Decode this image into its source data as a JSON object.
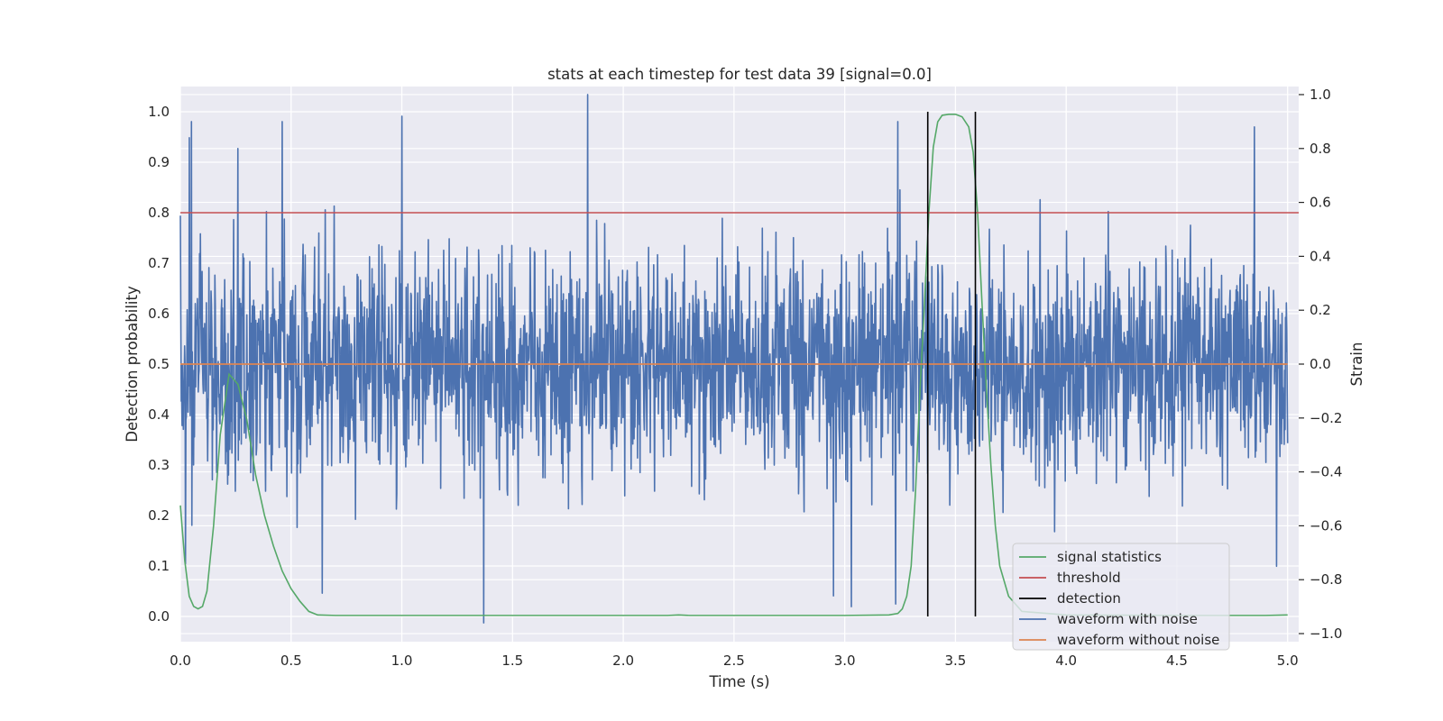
{
  "chart_data": {
    "type": "line",
    "title": "stats at each timestep for test data 39 [signal=0.0]",
    "xlabel": "Time (s)",
    "ylabel_left": "Detection probability",
    "ylabel_right": "Strain",
    "xlim": [
      0.0,
      5.05
    ],
    "ylim_left": [
      -0.05,
      1.05
    ],
    "ylim_right": [
      -1.03,
      1.03
    ],
    "x_ticks": [
      0.0,
      0.5,
      1.0,
      1.5,
      2.0,
      2.5,
      3.0,
      3.5,
      4.0,
      4.5,
      5.0
    ],
    "x_tick_labels": [
      "0.0",
      "0.5",
      "1.0",
      "1.5",
      "2.0",
      "2.5",
      "3.0",
      "3.5",
      "4.0",
      "4.5",
      "5.0"
    ],
    "y_left_ticks": [
      0.0,
      0.1,
      0.2,
      0.3,
      0.4,
      0.5,
      0.6,
      0.7,
      0.8,
      0.9,
      1.0
    ],
    "y_left_tick_labels": [
      "0.0",
      "0.1",
      "0.2",
      "0.3",
      "0.4",
      "0.5",
      "0.6",
      "0.7",
      "0.8",
      "0.9",
      "1.0"
    ],
    "y_right_ticks": [
      -1.0,
      -0.8,
      -0.6,
      -0.4,
      -0.2,
      0.0,
      0.2,
      0.4,
      0.6,
      0.8,
      1.0
    ],
    "y_right_tick_labels": [
      "−1.0",
      "−0.8",
      "−0.6",
      "−0.4",
      "−0.2",
      "0.0",
      "0.2",
      "0.4",
      "0.6",
      "0.8",
      "1.0"
    ],
    "grid": true,
    "legend_position": "lower-right",
    "series": [
      {
        "name": "signal statistics",
        "axis": "left",
        "color": "#55a868",
        "x": [
          0.0,
          0.02,
          0.04,
          0.06,
          0.08,
          0.1,
          0.12,
          0.15,
          0.18,
          0.22,
          0.26,
          0.3,
          0.34,
          0.38,
          0.42,
          0.46,
          0.5,
          0.54,
          0.58,
          0.62,
          0.7,
          1.0,
          1.5,
          2.0,
          2.2,
          2.25,
          2.3,
          2.5,
          3.0,
          3.2,
          3.24,
          3.26,
          3.28,
          3.3,
          3.32,
          3.34,
          3.36,
          3.38,
          3.4,
          3.42,
          3.44,
          3.47,
          3.5,
          3.53,
          3.56,
          3.58,
          3.6,
          3.62,
          3.64,
          3.66,
          3.68,
          3.7,
          3.74,
          3.8,
          4.0,
          4.5,
          4.9,
          5.0
        ],
        "y": [
          0.22,
          0.11,
          0.04,
          0.02,
          0.015,
          0.02,
          0.05,
          0.18,
          0.36,
          0.48,
          0.46,
          0.39,
          0.28,
          0.2,
          0.14,
          0.09,
          0.055,
          0.03,
          0.01,
          0.003,
          0.002,
          0.002,
          0.002,
          0.002,
          0.002,
          0.003,
          0.002,
          0.002,
          0.002,
          0.003,
          0.006,
          0.015,
          0.04,
          0.1,
          0.25,
          0.45,
          0.62,
          0.8,
          0.93,
          0.98,
          0.993,
          0.995,
          0.995,
          0.99,
          0.97,
          0.92,
          0.8,
          0.62,
          0.45,
          0.3,
          0.18,
          0.1,
          0.04,
          0.01,
          0.003,
          0.002,
          0.002,
          0.003
        ]
      },
      {
        "name": "threshold",
        "axis": "left",
        "color": "#c44e52",
        "x": [
          0.0,
          5.05
        ],
        "y": [
          0.8,
          0.8
        ]
      },
      {
        "name": "detection",
        "axis": "left",
        "color": "#000000",
        "segments": [
          {
            "x": 3.375,
            "y": [
              0.0,
              1.0
            ]
          },
          {
            "x": 3.59,
            "y": [
              0.0,
              1.0
            ]
          }
        ]
      },
      {
        "name": "waveform with noise",
        "axis": "right",
        "color": "#4c72b0",
        "x_range": [
          0.0,
          5.0
        ],
        "typical_amplitude": 0.2,
        "y_min": -0.96,
        "y_max": 1.0,
        "notable_peaks": [
          {
            "x": 1.84,
            "y": 1.0
          },
          {
            "x": 0.04,
            "y": 0.84
          },
          {
            "x": 0.05,
            "y": 0.9
          },
          {
            "x": 0.26,
            "y": 0.8
          },
          {
            "x": 0.46,
            "y": 0.9
          },
          {
            "x": 1.0,
            "y": 0.92
          },
          {
            "x": 3.24,
            "y": 0.9
          },
          {
            "x": 4.85,
            "y": 0.88
          }
        ],
        "notable_troughs": [
          {
            "x": 1.37,
            "y": -0.96
          },
          {
            "x": 0.64,
            "y": -0.85
          },
          {
            "x": 2.95,
            "y": -0.86
          },
          {
            "x": 3.03,
            "y": -0.9
          },
          {
            "x": 3.23,
            "y": -0.89
          },
          {
            "x": 4.95,
            "y": -0.75
          }
        ]
      },
      {
        "name": "waveform without noise",
        "axis": "right",
        "color": "#dd8452",
        "x": [
          0.0,
          5.0
        ],
        "y": [
          0.0,
          0.0
        ]
      }
    ]
  },
  "legend": {
    "items": [
      {
        "label": "signal statistics",
        "color": "#55a868"
      },
      {
        "label": "threshold",
        "color": "#c44e52"
      },
      {
        "label": "detection",
        "color": "#000000"
      },
      {
        "label": "waveform with noise",
        "color": "#4c72b0"
      },
      {
        "label": "waveform without noise",
        "color": "#dd8452"
      }
    ]
  }
}
